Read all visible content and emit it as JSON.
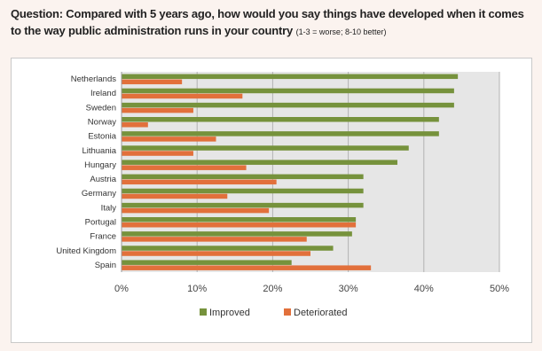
{
  "header": {
    "question_main": "Question: Compared with 5 years ago, how would you say things have developed when it comes to the way public administration runs in your country",
    "question_note": "(1-3 = worse; 8-10 better)"
  },
  "colors": {
    "improved": "#76923c",
    "deteriorated": "#e2703b",
    "plot_background": "#e6e6e6",
    "gridline": "#b3b3b3"
  },
  "chart_data": {
    "type": "bar",
    "orientation": "horizontal",
    "categories": [
      "Netherlands",
      "Ireland",
      "Sweden",
      "Norway",
      "Estonia",
      "Lithuania",
      "Hungary",
      "Austria",
      "Germany",
      "Italy",
      "Portugal",
      "France",
      "United Kingdom",
      "Spain"
    ],
    "series": [
      {
        "name": "Improved",
        "values": [
          44.5,
          44,
          44,
          42,
          42,
          38,
          36.5,
          32,
          32,
          32,
          31,
          30.5,
          28,
          22.5
        ]
      },
      {
        "name": "Deteriorated",
        "values": [
          8,
          16,
          9.5,
          3.5,
          12.5,
          9.5,
          16.5,
          20.5,
          14,
          19.5,
          31,
          24.5,
          25,
          33
        ]
      }
    ],
    "xticks": [
      "0%",
      "10%",
      "20%",
      "30%",
      "40%",
      "50%"
    ],
    "xlim": [
      0,
      50
    ],
    "grid": true,
    "legend": "bottom"
  }
}
